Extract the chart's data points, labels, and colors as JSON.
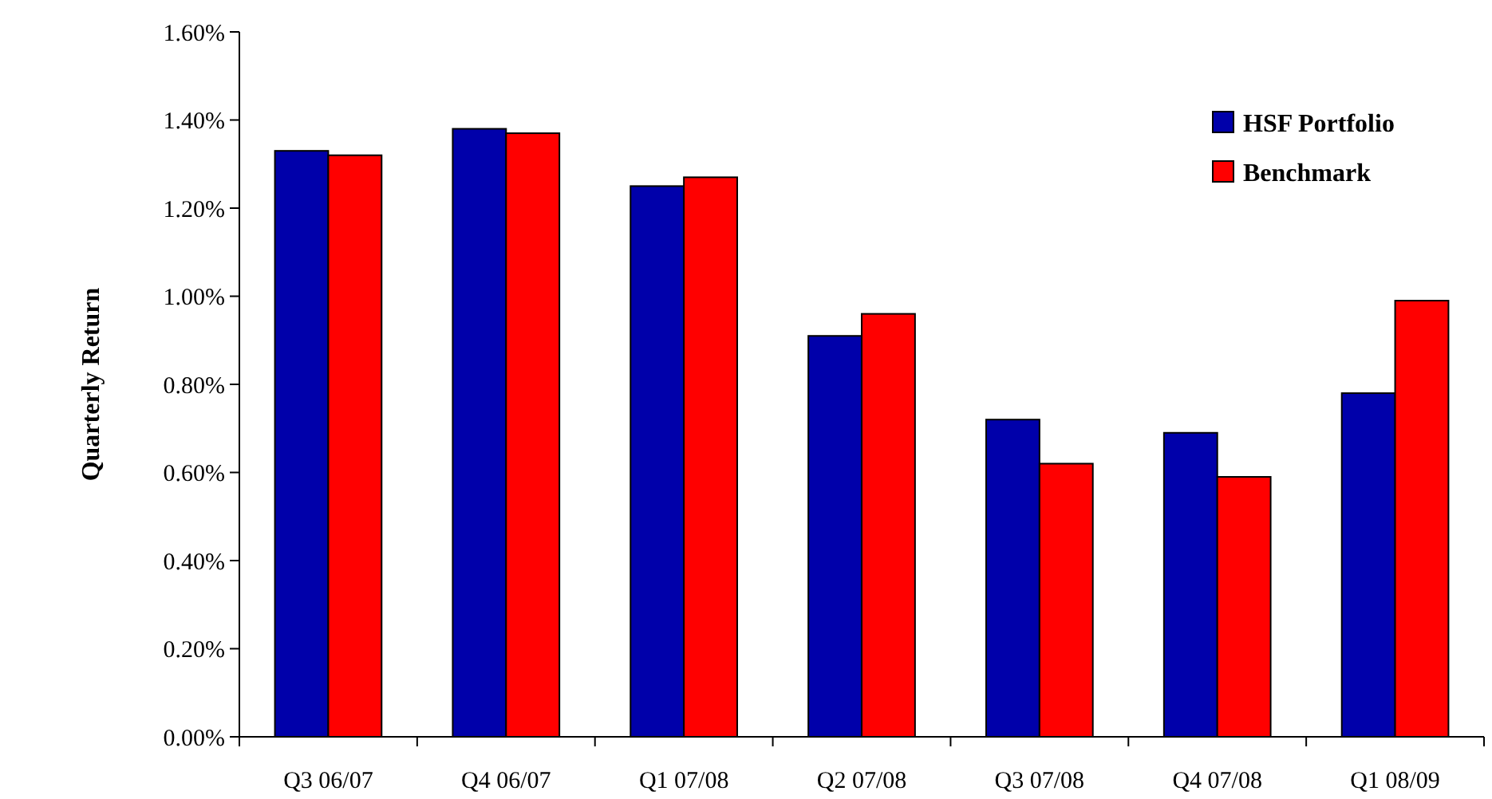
{
  "chart_data": {
    "type": "bar",
    "ylabel": "Quarterly Return",
    "categories": [
      "Q3 06/07",
      "Q4 06/07",
      "Q1 07/08",
      "Q2 07/08",
      "Q3 07/08",
      "Q4 07/08",
      "Q1 08/09"
    ],
    "series": [
      {
        "name": "HSF Portfolio",
        "color": "#0000aa",
        "values": [
          1.33,
          1.38,
          1.25,
          0.91,
          0.72,
          0.69,
          0.78
        ]
      },
      {
        "name": "Benchmark",
        "color": "#ff0000",
        "values": [
          1.32,
          1.37,
          1.27,
          0.96,
          0.62,
          0.59,
          0.99
        ]
      }
    ],
    "ylim": [
      0,
      1.6
    ],
    "yticks": [
      {
        "value": 0,
        "label": "0.00%"
      },
      {
        "value": 0.2,
        "label": "0.20%"
      },
      {
        "value": 0.4,
        "label": "0.40%"
      },
      {
        "value": 0.6,
        "label": "0.60%"
      },
      {
        "value": 0.8,
        "label": "0.80%"
      },
      {
        "value": 1.0,
        "label": "1.00%"
      },
      {
        "value": 1.2,
        "label": "1.20%"
      },
      {
        "value": 1.4,
        "label": "1.40%"
      },
      {
        "value": 1.6,
        "label": "1.60%"
      }
    ],
    "grid": false,
    "legend": "top right"
  }
}
